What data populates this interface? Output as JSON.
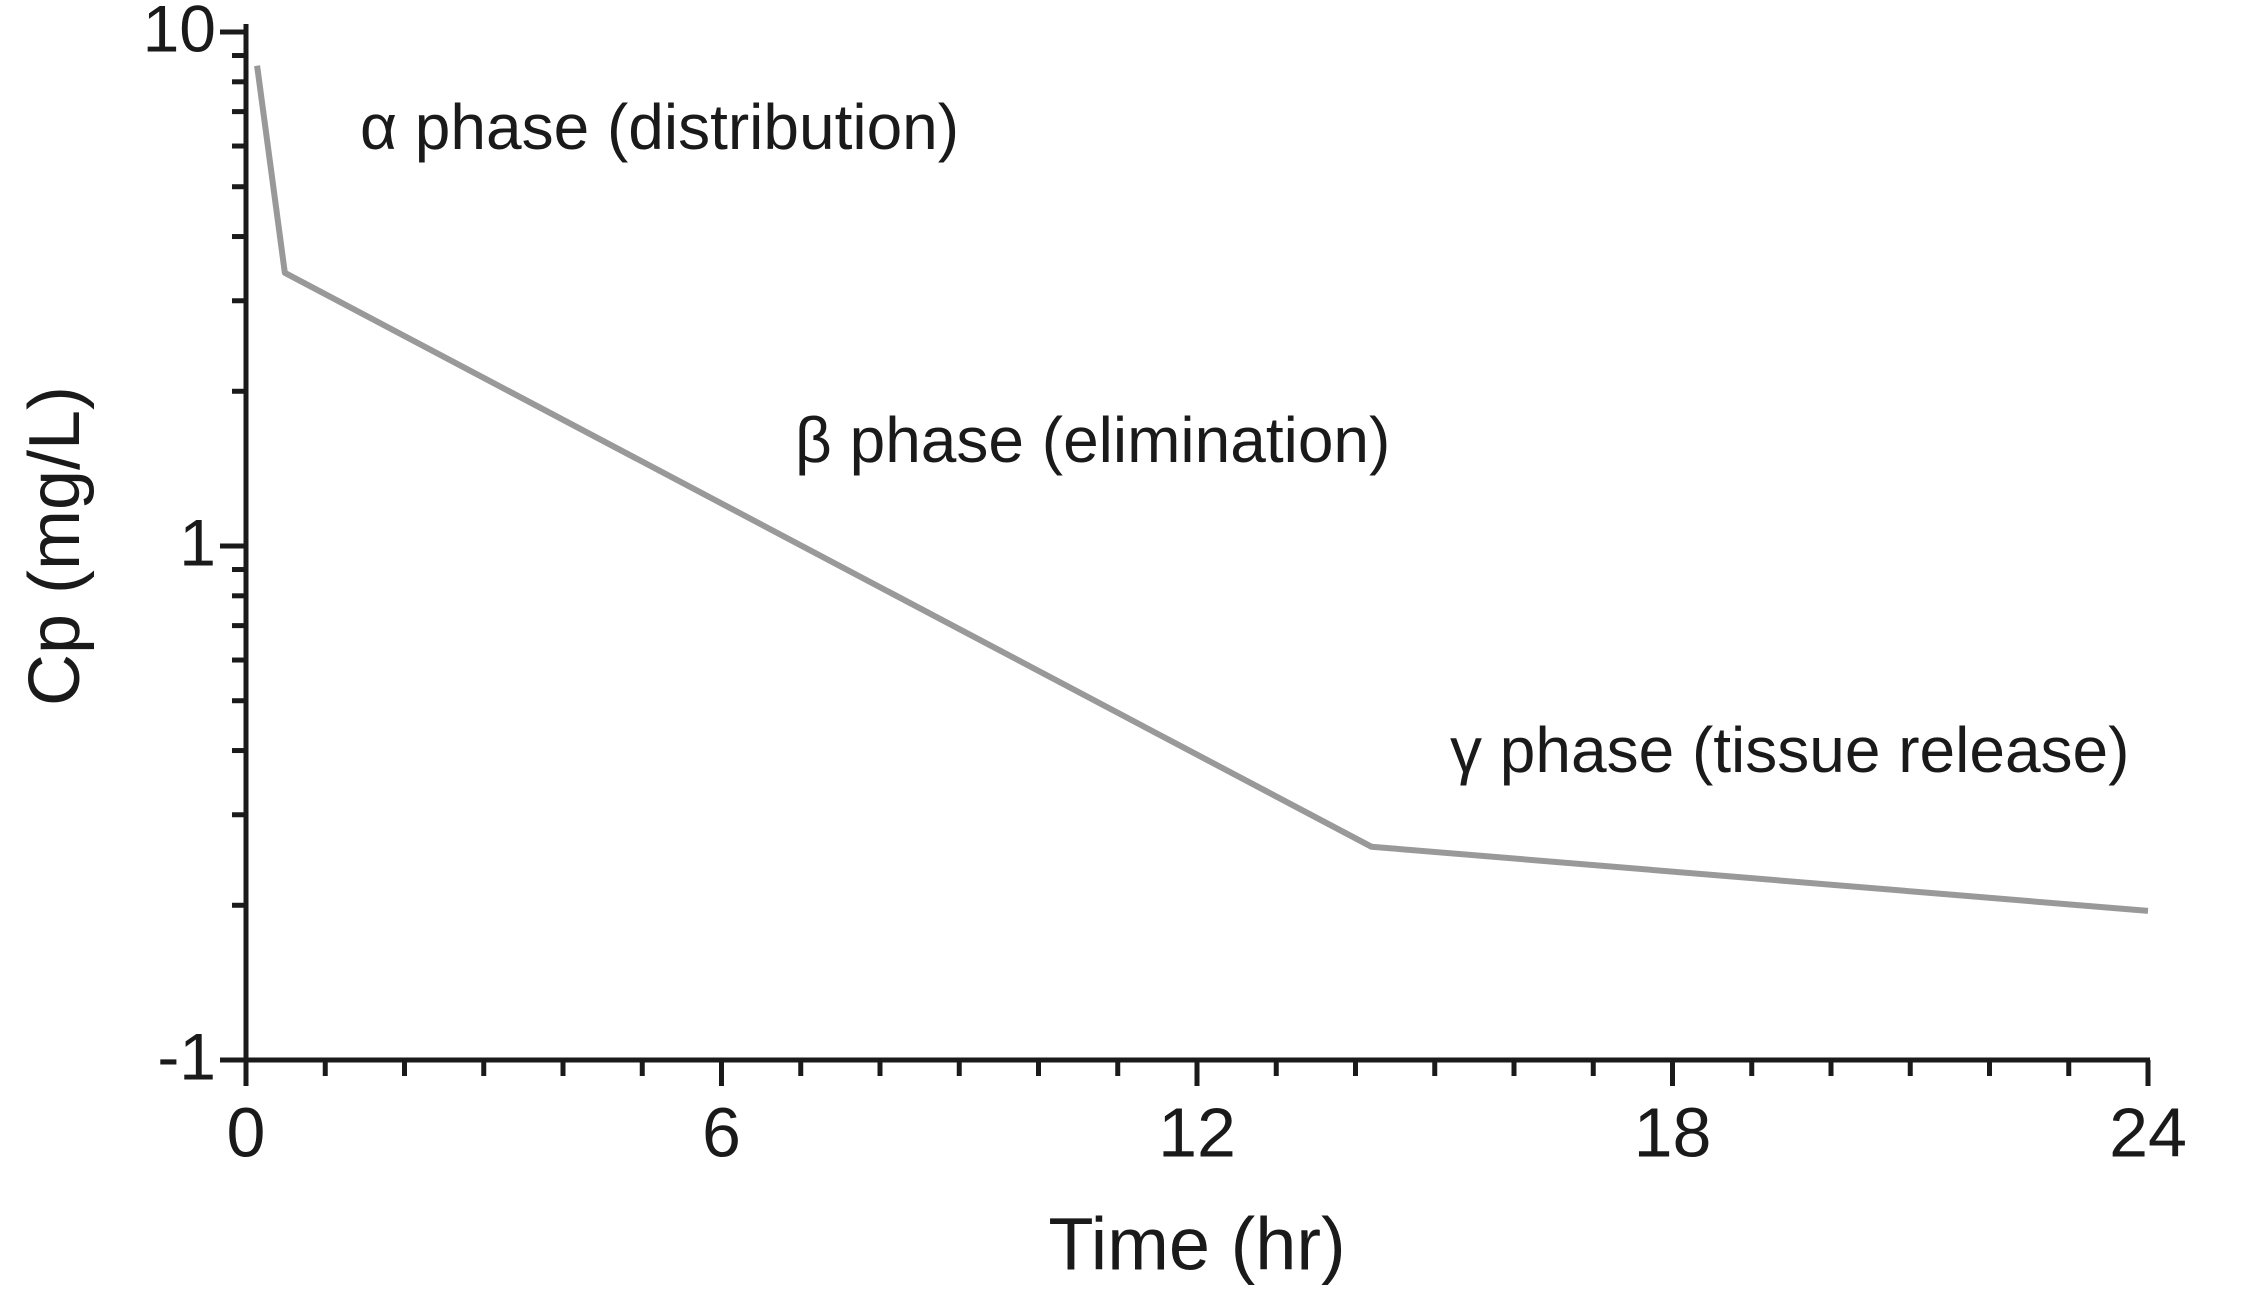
{
  "chart_data": {
    "type": "line",
    "x_label": "Time (hr)",
    "y_label": "Cp (mg/L)",
    "x": [
      0.14,
      0.49,
      14.2,
      24
    ],
    "series": [
      {
        "color": "#999999",
        "values": [
          8.6,
          3.4,
          0.26,
          0.195
        ]
      }
    ],
    "xlim": [
      0,
      24
    ],
    "xticks": [
      0,
      6,
      12,
      18,
      24
    ],
    "ylim": [
      0.1,
      10
    ],
    "yticks": [
      {
        "value": 0.1,
        "label": "-1"
      },
      1,
      10
    ],
    "log_scale_y": true,
    "annotations": [
      "α phase (distribution)",
      "β phase (elimination)",
      "γ phase (tissue release)"
    ]
  }
}
